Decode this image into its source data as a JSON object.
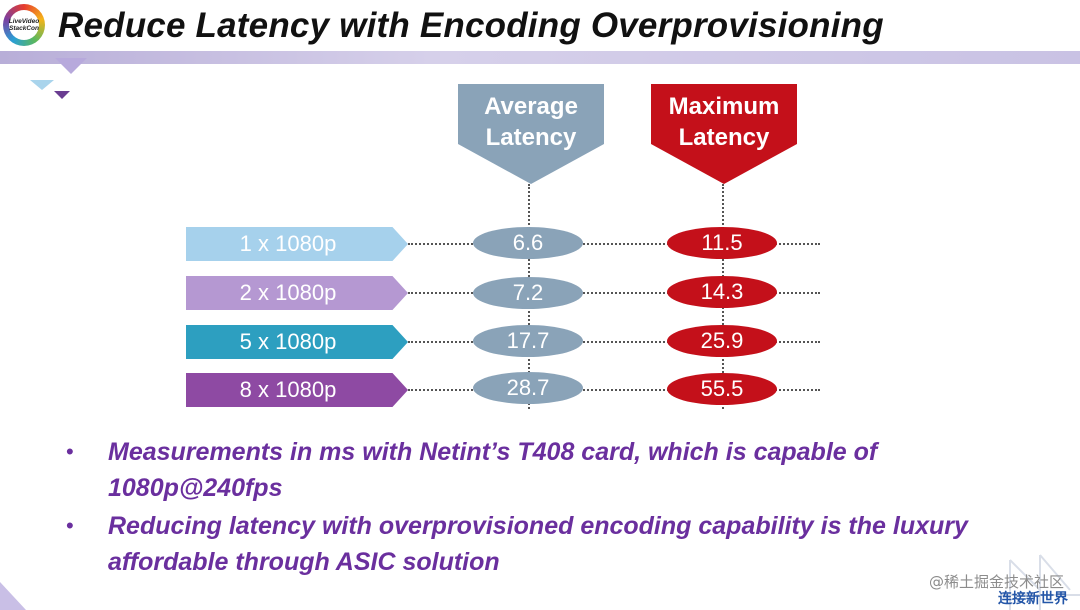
{
  "logo": {
    "line1": "LiveVideo",
    "line2": "StackCon"
  },
  "title": "Reduce Latency with Encoding Overprovisioning",
  "headers": {
    "average": {
      "line1": "Average",
      "line2": "Latency"
    },
    "maximum": {
      "line1": "Maximum",
      "line2": "Latency"
    }
  },
  "rows": [
    {
      "label": "1 x 1080p",
      "average": "6.6",
      "maximum": "11.5"
    },
    {
      "label": "2 x 1080p",
      "average": "7.2",
      "maximum": "14.3"
    },
    {
      "label": "5 x 1080p",
      "average": "17.7",
      "maximum": "25.9"
    },
    {
      "label": "8 x 1080p",
      "average": "28.7",
      "maximum": "55.5"
    }
  ],
  "bullets": [
    "Measurements in ms with Netint’s T408 card, which is capable of 1080p@240fps",
    "Reducing latency with overprovisioned encoding capability is the luxury affordable through ASIC solution"
  ],
  "bullet_symbol": "•",
  "watermark": "@稀土掘金技术社区",
  "footer_brand": "连接新世界",
  "colors": {
    "row_label_colors": [
      "#a6d1ec",
      "#b598d2",
      "#2d9fc0",
      "#8e4aa3"
    ],
    "average": "#8aa3b8",
    "maximum": "#c4101a",
    "bullet_text": "#6a2f9e"
  }
}
